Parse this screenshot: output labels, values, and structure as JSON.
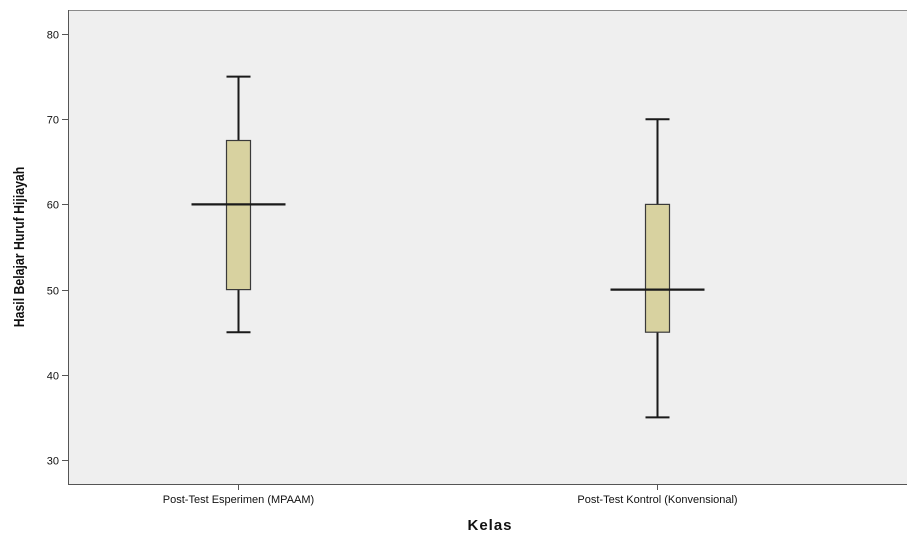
{
  "chart_data": {
    "type": "boxplot",
    "xlabel": "Kelas",
    "ylabel": "Hasil Belajar Huruf Hijiayah",
    "ylim": [
      27,
      82
    ],
    "yticks": [
      30,
      40,
      50,
      60,
      70,
      80
    ],
    "grid": false,
    "categories": [
      "Post-Test Esperimen (MPAAM)",
      "Post-Test Kontrol (Konvensional)"
    ],
    "boxes": [
      {
        "category": "Post-Test Esperimen (MPAAM)",
        "min": 45,
        "q1": 50,
        "median": 60,
        "q3": 67.5,
        "max": 75
      },
      {
        "category": "Post-Test Kontrol (Konvensional)",
        "min": 35,
        "q1": 45,
        "median": 50,
        "q3": 60,
        "max": 70
      }
    ],
    "colors": {
      "plot_background": "#efefef",
      "box_fill": "#d8d2a0",
      "box_stroke": "#3a3a3a",
      "axis": "#555555"
    }
  }
}
